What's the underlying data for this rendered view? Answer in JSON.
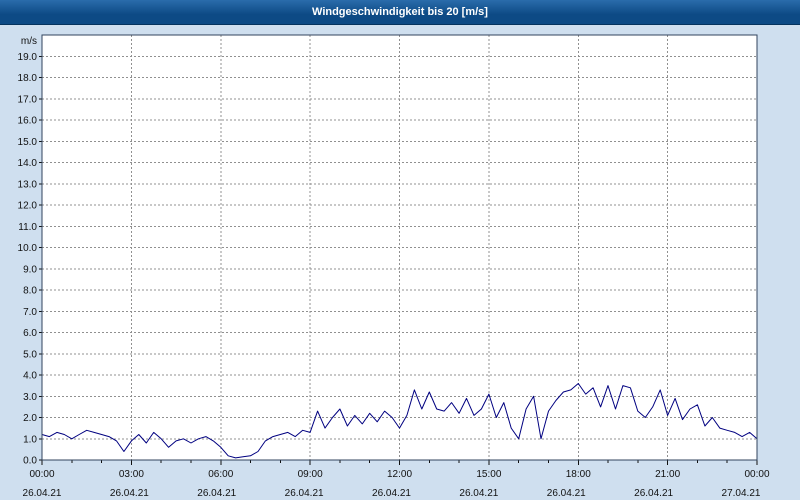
{
  "colors": {
    "page_bg": "#cfdfef",
    "title_bg": "#0d4a85",
    "title_bg_light": "#2a6cab",
    "title_fg": "#ffffff",
    "plot_bg": "#ffffff",
    "plot_border": "#30435c",
    "grid": "#909090",
    "line": "#000080",
    "text": "#111111"
  },
  "chart_data": {
    "type": "line",
    "title": "Windgeschwindigkeit bis 20 [m/s]",
    "ylabel": "m/s",
    "xlabel": "",
    "ylim": [
      0,
      20
    ],
    "ytick_step": 1,
    "ytick_labels": [
      "0.0",
      "1.0",
      "2.0",
      "3.0",
      "4.0",
      "5.0",
      "6.0",
      "7.0",
      "8.0",
      "9.0",
      "10.0",
      "11.0",
      "12.0",
      "13.0",
      "14.0",
      "15.0",
      "16.0",
      "17.0",
      "18.0",
      "19.0"
    ],
    "grid_style": "dashed",
    "legend": "none",
    "x_start_hour": 0,
    "x_end_hour": 24,
    "x_step_hours": 0.25,
    "xticks": [
      {
        "hour": 0,
        "time": "00:00",
        "date": "26.04.21"
      },
      {
        "hour": 3,
        "time": "03:00",
        "date": "26.04.21"
      },
      {
        "hour": 6,
        "time": "06:00",
        "date": "26.04.21"
      },
      {
        "hour": 9,
        "time": "09:00",
        "date": "26.04.21"
      },
      {
        "hour": 12,
        "time": "12:00",
        "date": "26.04.21"
      },
      {
        "hour": 15,
        "time": "15:00",
        "date": "26.04.21"
      },
      {
        "hour": 18,
        "time": "18:00",
        "date": "26.04.21"
      },
      {
        "hour": 21,
        "time": "21:00",
        "date": "26.04.21"
      },
      {
        "hour": 24,
        "time": "00:00",
        "date": "27.04.21"
      }
    ],
    "series": [
      {
        "name": "Windgeschwindigkeit [m/s]",
        "values": [
          1.2,
          1.1,
          1.3,
          1.2,
          1.0,
          1.2,
          1.4,
          1.3,
          1.2,
          1.1,
          0.9,
          0.4,
          0.9,
          1.2,
          0.8,
          1.3,
          1.0,
          0.6,
          0.9,
          1.0,
          0.8,
          1.0,
          1.1,
          0.9,
          0.6,
          0.2,
          0.1,
          0.15,
          0.2,
          0.4,
          0.9,
          1.1,
          1.2,
          1.3,
          1.1,
          1.4,
          1.3,
          2.3,
          1.5,
          2.0,
          2.4,
          1.6,
          2.1,
          1.7,
          2.2,
          1.8,
          2.3,
          2.0,
          1.5,
          2.1,
          3.3,
          2.4,
          3.2,
          2.4,
          2.3,
          2.7,
          2.2,
          2.9,
          2.1,
          2.4,
          3.1,
          2.0,
          2.7,
          1.5,
          1.0,
          2.4,
          3.0,
          1.0,
          2.3,
          2.8,
          3.2,
          3.3,
          3.6,
          3.1,
          3.4,
          2.5,
          3.5,
          2.4,
          3.5,
          3.4,
          2.3,
          2.0,
          2.5,
          3.3,
          2.1,
          2.9,
          1.9,
          2.4,
          2.6,
          1.6,
          2.0,
          1.5,
          1.4,
          1.3,
          1.1,
          1.3,
          1.0
        ]
      }
    ]
  }
}
